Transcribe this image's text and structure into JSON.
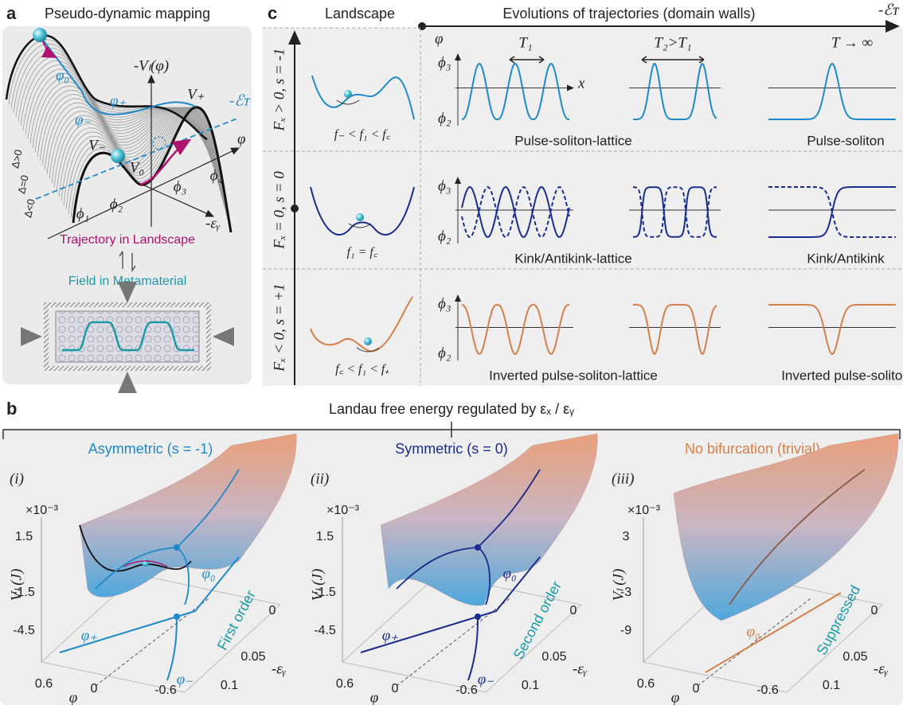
{
  "panel_a": {
    "label": "a",
    "title": "Pseudo-dynamic mapping",
    "potential_axis": "-Vₗ(φ)",
    "energy_level": "-ℰᴛ",
    "v_plus": "V₊",
    "v_minus": "V₋",
    "v_zero": "V₀",
    "phi_0": "φ₀",
    "phi_minus": "φ₋",
    "phi_plus": "φ₊",
    "phi_axis": "φ",
    "roots": [
      "ϕ₁",
      "ϕ₂",
      "ϕ₃",
      "ϕ₄"
    ],
    "strain_axis": "-εᵧ",
    "delta_labels": [
      "Δ>0",
      "Δ=0",
      "Δ<0"
    ],
    "trajectory_caption": "Trajectory in Landscape",
    "field_caption": "Field in Metamaterial"
  },
  "panel_c": {
    "label": "c",
    "landscape_header": "Landscape",
    "evolution_header": "Evolutions of trajectories (domain walls)",
    "energy_axis": "-ℰᴛ",
    "period_labels": [
      "T₁",
      "T₂>T₁",
      "T → ∞"
    ],
    "axes": {
      "phi": "φ",
      "phi_3": "ϕ₃",
      "phi_2": "ϕ₂",
      "x": "x"
    },
    "rows": [
      {
        "condition": "Fₓ > 0, s = -1",
        "landscape": "f₋ < f₁ < f꜀",
        "lattice": "Pulse-soliton-lattice",
        "single": "Pulse-soliton"
      },
      {
        "condition": "Fₓ = 0, s = 0",
        "landscape": "f₁ = f꜀",
        "lattice": "Kink/Antikink-lattice",
        "single": "Kink/Antikink"
      },
      {
        "condition": "Fₓ < 0, s = +1",
        "landscape": "f꜀ < f₁ < f₊",
        "lattice": "Inverted pulse-soliton-lattice",
        "single": "Inverted pulse-soliton"
      }
    ]
  },
  "panel_b": {
    "label": "b",
    "title": "Landau free energy regulated by εₓ / εᵧ",
    "subpanels": [
      {
        "title": "Asymmetric (s = -1)",
        "index": "(i)",
        "scale": "×10⁻³",
        "yticks": [
          "1.5",
          "-1.5",
          "-4.5"
        ],
        "y_label": "Vₗ (J)",
        "branches": [
          "φ₀",
          "φ₊",
          "φ₋"
        ],
        "transition": "First order",
        "phi_ticks": [
          "0.6",
          "0",
          "-0.6"
        ],
        "phi_axis": "φ",
        "strain_ticks": [
          "0",
          "0.05",
          "0.1"
        ],
        "strain_axis": "-εᵧ"
      },
      {
        "title": "Symmetric (s = 0)",
        "index": "(ii)",
        "scale": "×10⁻³",
        "yticks": [
          "1.5",
          "-1.5",
          "-4.5"
        ],
        "y_label": "Vₗ (J)",
        "branches": [
          "φ₀",
          "φ₊",
          "φ₋"
        ],
        "transition": "Second order",
        "phi_ticks": [
          "0.6",
          "0",
          "-0.6"
        ],
        "phi_axis": "φ",
        "strain_ticks": [
          "0",
          "0.05",
          "0.1"
        ],
        "strain_axis": "-εᵧ"
      },
      {
        "title": "No bifurcation (trivial)",
        "index": "(iii)",
        "scale": "×10⁻³",
        "yticks": [
          "3",
          "-3",
          "-9"
        ],
        "y_label": "Vₗ (J)",
        "branches": [
          "φ₀"
        ],
        "transition": "Suppressed",
        "phi_ticks": [
          "0.6",
          "0",
          "-0.6"
        ],
        "phi_axis": "φ",
        "strain_ticks": [
          "0",
          "0.05",
          "0.1"
        ],
        "strain_axis": "-εᵧ"
      }
    ]
  }
}
